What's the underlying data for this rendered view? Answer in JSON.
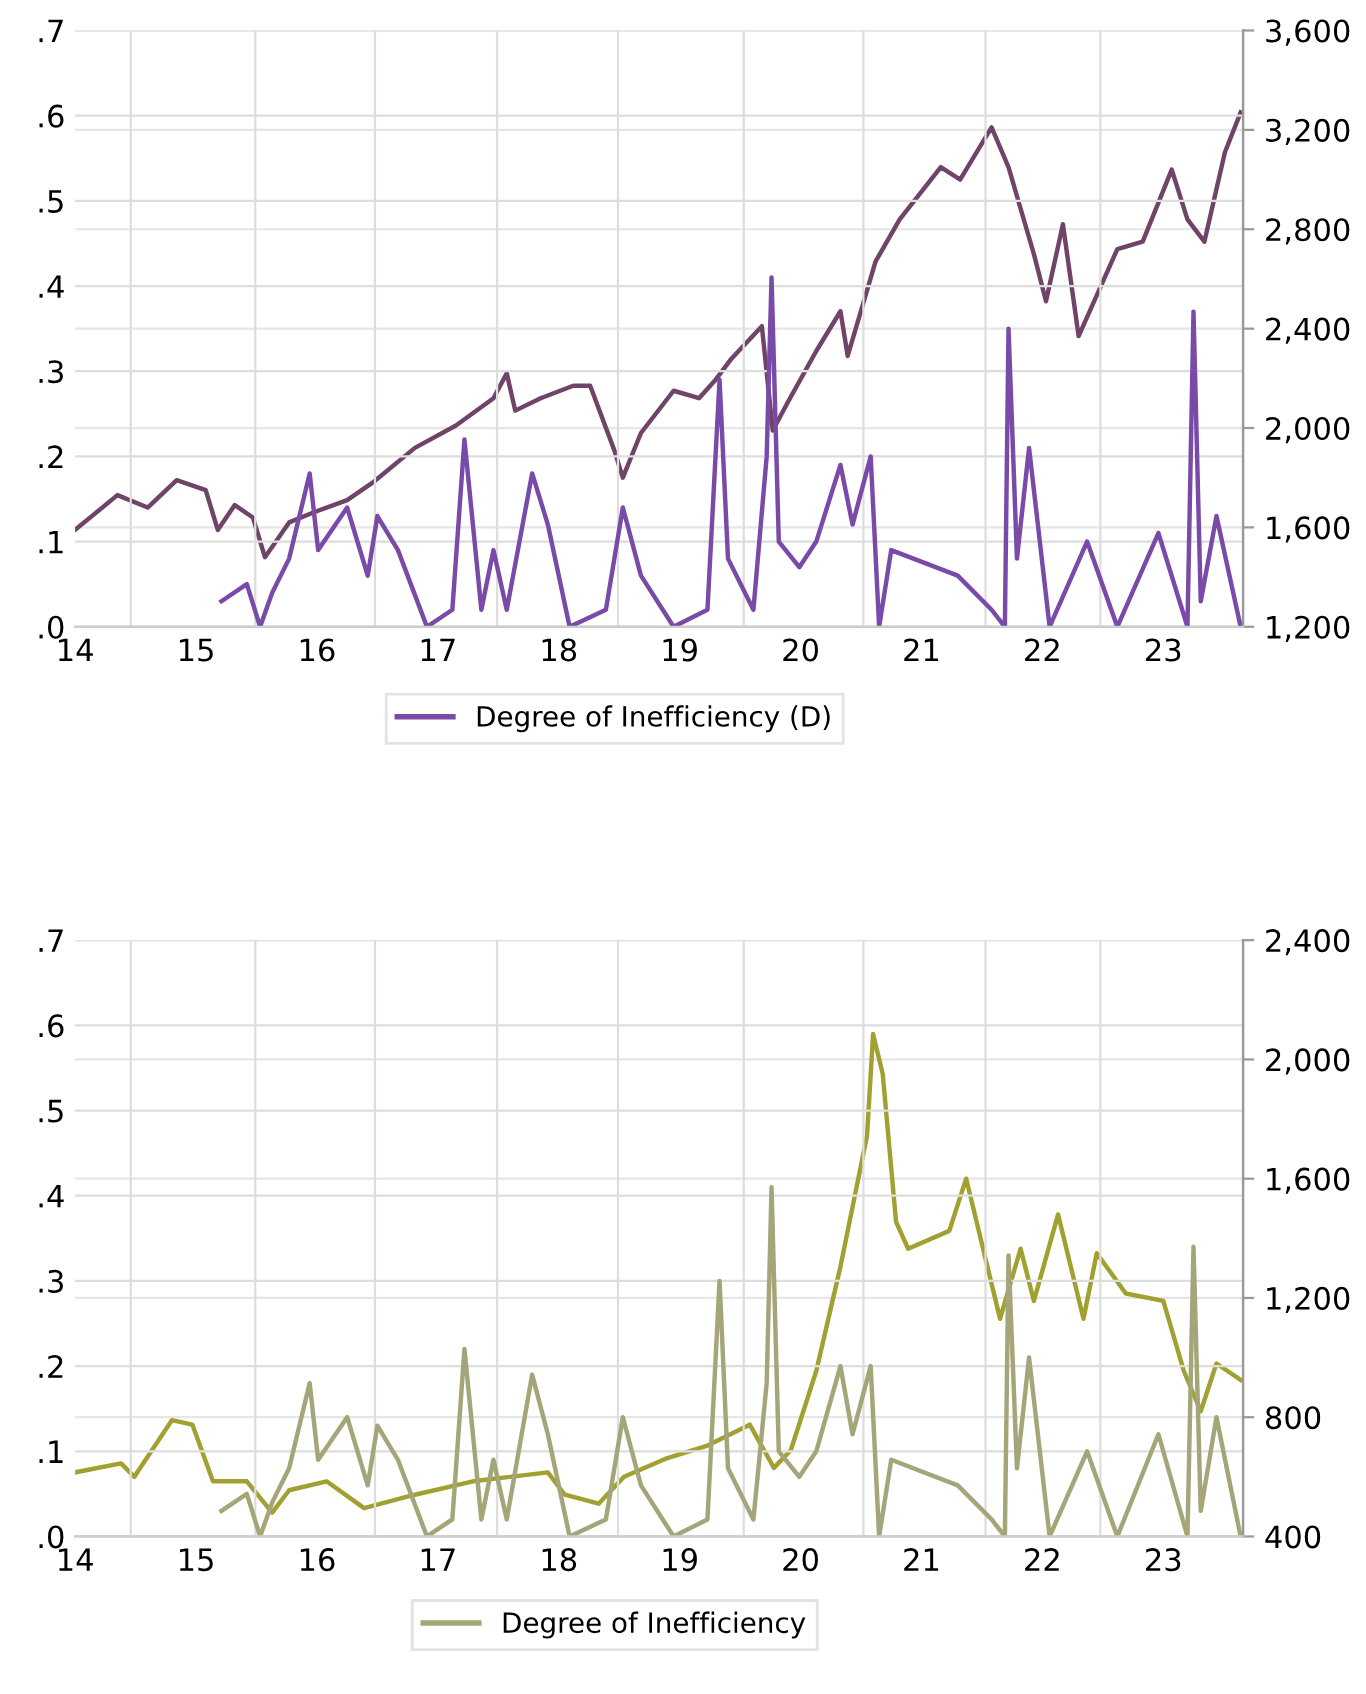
{
  "chart_data": [
    {
      "type": "line",
      "grid": true,
      "legend": "bottom",
      "xlim": [
        14,
        23.66
      ],
      "xticks": [
        14,
        {
          "value": 14.46,
          "label": null
        },
        15,
        {
          "value": 15.49,
          "label": null
        },
        16,
        {
          "value": 16.48,
          "label": null
        },
        17,
        {
          "value": 17.49,
          "label": null
        },
        18,
        {
          "value": 18.49,
          "label": null
        },
        19,
        {
          "value": 19.53,
          "label": null
        },
        20,
        {
          "value": 20.52,
          "label": null
        },
        21,
        {
          "value": 21.53,
          "label": null
        },
        22,
        {
          "value": 22.48,
          "label": null
        },
        23
      ],
      "ylim": [
        0,
        0.7
      ],
      "yticks": [
        {
          "value": 0,
          "label": ".0"
        },
        {
          "value": 0.1,
          "label": ".1"
        },
        {
          "value": 0.2,
          "label": ".2"
        },
        {
          "value": 0.3,
          "label": ".3"
        },
        {
          "value": 0.4,
          "label": ".4"
        },
        {
          "value": 0.5,
          "label": ".5"
        },
        {
          "value": 0.6,
          "label": ".6"
        },
        {
          "value": 0.7,
          "label": ".7"
        }
      ],
      "y2lim": [
        1200,
        3600
      ],
      "y2ticks": [
        {
          "value": 1200,
          "label": "1,200"
        },
        {
          "value": 1600,
          "label": "1,600"
        },
        {
          "value": 2000,
          "label": "2,000"
        },
        {
          "value": 2400,
          "label": "2,400"
        },
        {
          "value": 2800,
          "label": "2,800"
        },
        {
          "value": 3200,
          "label": "3,200"
        },
        {
          "value": 3600,
          "label": "3,600"
        }
      ],
      "series": [
        {
          "color": "#704468",
          "axis": "y2",
          "x": [
            14.0,
            14.35,
            14.6,
            14.84,
            15.08,
            15.18,
            15.32,
            15.47,
            15.57,
            15.77,
            15.97,
            16.25,
            16.46,
            16.81,
            17.15,
            17.46,
            17.57,
            17.64,
            17.85,
            18.12,
            18.26,
            18.46,
            18.53,
            18.68,
            18.95,
            19.16,
            19.29,
            19.43,
            19.68,
            19.77,
            19.89,
            20.13,
            20.33,
            20.39,
            20.62,
            20.82,
            21.16,
            21.32,
            21.58,
            21.72,
            21.93,
            22.03,
            22.17,
            22.3,
            22.62,
            22.83,
            23.07,
            23.2,
            23.34,
            23.51,
            23.64
          ],
          "values": [
            1590,
            1730,
            1680,
            1790,
            1750,
            1590,
            1690,
            1640,
            1480,
            1620,
            1660,
            1710,
            1780,
            1920,
            2010,
            2120,
            2220,
            2070,
            2120,
            2170,
            2170,
            1910,
            1800,
            1980,
            2150,
            2120,
            2190,
            2280,
            2410,
            1990,
            2100,
            2310,
            2470,
            2290,
            2670,
            2840,
            3050,
            3000,
            3210,
            3050,
            2700,
            2510,
            2820,
            2370,
            2720,
            2750,
            3040,
            2840,
            2750,
            3110,
            3270
          ]
        },
        {
          "name": "Degree of Inefficiency (D)",
          "color": "#7a4aa8",
          "x": [
            15.21,
            15.42,
            15.53,
            15.63,
            15.77,
            15.94,
            16.01,
            16.25,
            16.42,
            16.5,
            16.67,
            16.91,
            17.12,
            17.22,
            17.36,
            17.46,
            17.57,
            17.78,
            17.91,
            18.09,
            18.39,
            18.53,
            18.68,
            18.95,
            19.23,
            19.33,
            19.4,
            19.61,
            19.72,
            19.76,
            19.82,
            19.99,
            20.13,
            20.33,
            20.43,
            20.58,
            20.65,
            20.75,
            21.3,
            21.58,
            21.69,
            21.72,
            21.79,
            21.89,
            22.06,
            22.37,
            22.62,
            22.96,
            23.2,
            23.25,
            23.31,
            23.44,
            23.64
          ],
          "values": [
            0.03,
            0.05,
            0.0,
            0.04,
            0.08,
            0.18,
            0.09,
            0.14,
            0.06,
            0.13,
            0.09,
            0.0,
            0.02,
            0.22,
            0.02,
            0.09,
            0.02,
            0.18,
            0.12,
            0.0,
            0.02,
            0.14,
            0.06,
            0.0,
            0.02,
            0.29,
            0.08,
            0.02,
            0.2,
            0.41,
            0.1,
            0.07,
            0.1,
            0.19,
            0.12,
            0.2,
            0.0,
            0.09,
            0.06,
            0.02,
            0.0,
            0.35,
            0.08,
            0.21,
            0.0,
            0.1,
            0.0,
            0.11,
            0.0,
            0.37,
            0.03,
            0.13,
            0.0
          ]
        }
      ]
    },
    {
      "type": "line",
      "grid": true,
      "legend": "bottom",
      "xlim": [
        14,
        23.66
      ],
      "xticks": [
        14,
        {
          "value": 14.46,
          "label": null
        },
        15,
        {
          "value": 15.49,
          "label": null
        },
        16,
        {
          "value": 16.48,
          "label": null
        },
        17,
        {
          "value": 17.49,
          "label": null
        },
        18,
        {
          "value": 18.49,
          "label": null
        },
        19,
        {
          "value": 19.53,
          "label": null
        },
        20,
        {
          "value": 20.52,
          "label": null
        },
        21,
        {
          "value": 21.53,
          "label": null
        },
        22,
        {
          "value": 22.48,
          "label": null
        },
        23
      ],
      "ylim": [
        0,
        0.7
      ],
      "yticks": [
        {
          "value": 0,
          "label": ".0"
        },
        {
          "value": 0.1,
          "label": ".1"
        },
        {
          "value": 0.2,
          "label": ".2"
        },
        {
          "value": 0.3,
          "label": ".3"
        },
        {
          "value": 0.4,
          "label": ".4"
        },
        {
          "value": 0.5,
          "label": ".5"
        },
        {
          "value": 0.6,
          "label": ".6"
        },
        {
          "value": 0.7,
          "label": ".7"
        }
      ],
      "y2lim": [
        400,
        2400
      ],
      "y2ticks": [
        {
          "value": 400,
          "label": "400"
        },
        {
          "value": 800,
          "label": "800"
        },
        {
          "value": 1200,
          "label": "1,200"
        },
        {
          "value": 1600,
          "label": "1,600"
        },
        {
          "value": 2000,
          "label": "2,000"
        },
        {
          "value": 2400,
          "label": "2,400"
        }
      ],
      "series": [
        {
          "color": "#a3a032",
          "axis": "y2",
          "x": [
            14.0,
            14.38,
            14.49,
            14.8,
            14.97,
            15.14,
            15.42,
            15.63,
            15.77,
            16.08,
            16.39,
            16.81,
            17.29,
            17.91,
            18.05,
            18.33,
            18.54,
            18.88,
            19.23,
            19.58,
            19.78,
            19.92,
            20.13,
            20.33,
            20.55,
            20.6,
            20.68,
            20.79,
            20.89,
            21.23,
            21.37,
            21.51,
            21.65,
            21.82,
            21.93,
            22.13,
            22.34,
            22.45,
            22.69,
            23.0,
            23.17,
            23.31,
            23.44,
            23.64
          ],
          "values": [
            615,
            645,
            600,
            790,
            775,
            585,
            585,
            480,
            555,
            585,
            495,
            540,
            585,
            615,
            540,
            510,
            600,
            660,
            705,
            775,
            630,
            690,
            955,
            1305,
            1745,
            2085,
            1950,
            1455,
            1365,
            1425,
            1600,
            1365,
            1130,
            1365,
            1190,
            1480,
            1130,
            1350,
            1215,
            1190,
            955,
            820,
            980,
            925
          ]
        },
        {
          "name": "Degree of Inefficiency",
          "color": "#a5a57a",
          "x": [
            15.21,
            15.42,
            15.53,
            15.63,
            15.77,
            15.94,
            16.01,
            16.25,
            16.42,
            16.5,
            16.67,
            16.91,
            17.12,
            17.22,
            17.36,
            17.46,
            17.57,
            17.78,
            17.91,
            18.09,
            18.39,
            18.53,
            18.68,
            18.95,
            19.23,
            19.33,
            19.4,
            19.61,
            19.72,
            19.76,
            19.82,
            19.99,
            20.13,
            20.33,
            20.43,
            20.58,
            20.65,
            20.75,
            21.3,
            21.58,
            21.69,
            21.72,
            21.79,
            21.89,
            22.06,
            22.37,
            22.62,
            22.96,
            23.2,
            23.25,
            23.31,
            23.44,
            23.64
          ],
          "values": [
            0.03,
            0.05,
            0.0,
            0.04,
            0.08,
            0.18,
            0.09,
            0.14,
            0.06,
            0.13,
            0.09,
            0.0,
            0.02,
            0.22,
            0.02,
            0.09,
            0.02,
            0.19,
            0.12,
            0.0,
            0.02,
            0.14,
            0.06,
            0.0,
            0.02,
            0.3,
            0.08,
            0.02,
            0.18,
            0.41,
            0.1,
            0.07,
            0.1,
            0.2,
            0.12,
            0.2,
            0.0,
            0.09,
            0.06,
            0.02,
            0.0,
            0.33,
            0.08,
            0.21,
            0.0,
            0.1,
            0.0,
            0.12,
            0.0,
            0.34,
            0.03,
            0.14,
            0.0
          ]
        }
      ]
    }
  ]
}
